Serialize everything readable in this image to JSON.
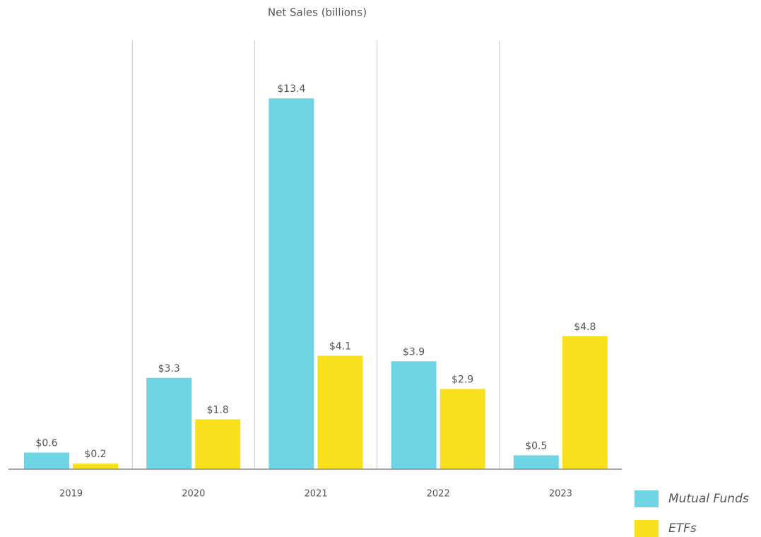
{
  "chart_data": {
    "type": "bar",
    "title": "Net Sales (billions)",
    "categories": [
      "2019",
      "2020",
      "2021",
      "2022",
      "2023"
    ],
    "series": [
      {
        "name": "Mutual Funds",
        "color": "#6fd4e4",
        "values": [
          0.6,
          3.3,
          13.4,
          3.9,
          0.5
        ],
        "value_labels": [
          "$0.6",
          "$3.3",
          "$13.4",
          "$3.9",
          "$0.5"
        ]
      },
      {
        "name": "ETFs",
        "color": "#f8e01c",
        "values": [
          0.2,
          1.8,
          4.1,
          2.9,
          4.8
        ],
        "value_labels": [
          "$0.2",
          "$1.8",
          "$4.1",
          "$2.9",
          "$4.8"
        ]
      }
    ],
    "ylim": [
      0,
      15.5
    ],
    "legend": "bottom-right"
  }
}
